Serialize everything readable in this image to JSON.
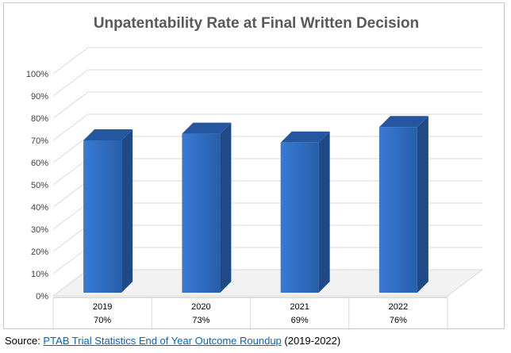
{
  "chart_data": {
    "type": "bar",
    "title": "Unpatentability Rate at Final Written Decision",
    "categories": [
      "2019",
      "2020",
      "2021",
      "2022"
    ],
    "value_labels": [
      "70%",
      "73%",
      "69%",
      "76%"
    ],
    "values": [
      70,
      73,
      69,
      76
    ],
    "yticks": [
      "0%",
      "10%",
      "20%",
      "30%",
      "40%",
      "50%",
      "60%",
      "70%",
      "80%",
      "90%",
      "100%"
    ],
    "ylim": [
      0,
      100
    ],
    "xlabel": "",
    "ylabel": "",
    "grid": true,
    "style": "3d-column",
    "bar_color": "#2e6bc4"
  },
  "source": {
    "prefix": "Source: ",
    "link_text": "PTAB Trial Statistics End of Year Outcome Roundup",
    "suffix": " (2019-2022)"
  }
}
